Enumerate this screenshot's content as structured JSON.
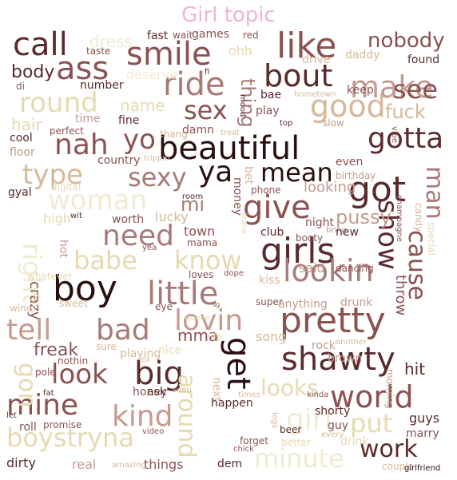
{
  "title": "Girl topic",
  "colors": {
    "background": "#ffffff",
    "title": "#f4b6c8",
    "palette": [
      "#2a0f10",
      "#5a2a2c",
      "#8a5250",
      "#a77a78",
      "#c49b8f",
      "#d6b998",
      "#e6dab0",
      "#f0ecd4"
    ]
  },
  "words": [
    {
      "text": "beautiful"
    },
    {
      "text": "girls"
    },
    {
      "text": "boy"
    },
    {
      "text": "pretty"
    },
    {
      "text": "little"
    },
    {
      "text": "smile"
    },
    {
      "text": "like"
    },
    {
      "text": "call"
    },
    {
      "text": "ride"
    },
    {
      "text": "bout"
    },
    {
      "text": "good"
    },
    {
      "text": "gotta"
    },
    {
      "text": "got"
    },
    {
      "text": "shawty"
    },
    {
      "text": "world"
    },
    {
      "text": "work"
    },
    {
      "text": "put"
    },
    {
      "text": "mine"
    },
    {
      "text": "kind"
    },
    {
      "text": "look"
    },
    {
      "text": "big"
    },
    {
      "text": "get"
    },
    {
      "text": "need"
    },
    {
      "text": "tell"
    },
    {
      "text": "bad"
    },
    {
      "text": "lovin"
    },
    {
      "text": "lookin"
    },
    {
      "text": "give"
    },
    {
      "text": "mean"
    },
    {
      "text": "sexy"
    },
    {
      "text": "ya"
    },
    {
      "text": "nah"
    },
    {
      "text": "yo"
    },
    {
      "text": "ass"
    },
    {
      "text": "make"
    },
    {
      "text": "see"
    },
    {
      "text": "round"
    },
    {
      "text": "sex"
    },
    {
      "text": "type"
    },
    {
      "text": "woman"
    },
    {
      "text": "babe"
    },
    {
      "text": "know"
    },
    {
      "text": "show"
    },
    {
      "text": "cause"
    },
    {
      "text": "man"
    },
    {
      "text": "boystryna"
    },
    {
      "text": "minute"
    },
    {
      "text": "around"
    },
    {
      "text": "girl"
    },
    {
      "text": "gon"
    },
    {
      "text": "right"
    },
    {
      "text": "nobody"
    },
    {
      "text": "body"
    },
    {
      "text": "hair"
    },
    {
      "text": "thing"
    },
    {
      "text": "pussy"
    },
    {
      "text": "looks"
    },
    {
      "text": "hit"
    },
    {
      "text": "freak"
    },
    {
      "text": "mma"
    },
    {
      "text": "throw"
    },
    {
      "text": "crazy"
    },
    {
      "text": "guys"
    },
    {
      "text": "marry"
    },
    {
      "text": "fuck"
    },
    {
      "text": "dress"
    },
    {
      "text": "fast"
    },
    {
      "text": "wait"
    },
    {
      "text": "games"
    },
    {
      "text": "red"
    },
    {
      "text": "taste"
    },
    {
      "text": "ohh"
    },
    {
      "text": "daddy"
    },
    {
      "text": "drive"
    },
    {
      "text": "found"
    },
    {
      "text": "di"
    },
    {
      "text": "number"
    },
    {
      "text": "deserve"
    },
    {
      "text": "fi"
    },
    {
      "text": "bae"
    },
    {
      "text": "hometown"
    },
    {
      "text": "keep"
    },
    {
      "text": "name"
    },
    {
      "text": "time"
    },
    {
      "text": "fine"
    },
    {
      "text": "play"
    },
    {
      "text": "top"
    },
    {
      "text": "slow"
    },
    {
      "text": "perfect"
    },
    {
      "text": "thang"
    },
    {
      "text": "damn"
    },
    {
      "text": "treat"
    },
    {
      "text": "mood"
    },
    {
      "text": "cool"
    },
    {
      "text": "floor"
    },
    {
      "text": "country"
    },
    {
      "text": "trippin"
    },
    {
      "text": "even"
    },
    {
      "text": "birthday"
    },
    {
      "text": "vibe"
    },
    {
      "text": "champagne"
    },
    {
      "text": "candy"
    },
    {
      "text": "special"
    },
    {
      "text": "digital"
    },
    {
      "text": "gyal"
    },
    {
      "text": "phone"
    },
    {
      "text": "looking"
    },
    {
      "text": "money"
    },
    {
      "text": "bet"
    },
    {
      "text": "lucky"
    },
    {
      "text": "room"
    },
    {
      "text": "jeans"
    },
    {
      "text": "night"
    },
    {
      "text": "bring"
    },
    {
      "text": "high"
    },
    {
      "text": "wit"
    },
    {
      "text": "worth"
    },
    {
      "text": "mi"
    },
    {
      "text": "town"
    },
    {
      "text": "club"
    },
    {
      "text": "booty"
    },
    {
      "text": "new"
    },
    {
      "text": "mama"
    },
    {
      "text": "hot"
    },
    {
      "text": "yea"
    },
    {
      "text": "said"
    },
    {
      "text": "dancing"
    },
    {
      "text": "til"
    },
    {
      "text": "loves"
    },
    {
      "text": "dope"
    },
    {
      "text": "kiss"
    },
    {
      "text": "whatever"
    },
    {
      "text": "worry"
    },
    {
      "text": "sweet"
    },
    {
      "text": "eye"
    },
    {
      "text": "sg"
    },
    {
      "text": "super"
    },
    {
      "text": "anything"
    },
    {
      "text": "drunk"
    },
    {
      "text": "wine"
    },
    {
      "text": "queen"
    },
    {
      "text": "rock"
    },
    {
      "text": "another"
    },
    {
      "text": "life"
    },
    {
      "text": "song"
    },
    {
      "text": "sure"
    },
    {
      "text": "playing"
    },
    {
      "text": "nice"
    },
    {
      "text": "nothin"
    },
    {
      "text": "ex"
    },
    {
      "text": "brown"
    },
    {
      "text": "pole"
    },
    {
      "text": "morning"
    },
    {
      "text": "honey"
    },
    {
      "text": "ask"
    },
    {
      "text": "seen"
    },
    {
      "text": "next"
    },
    {
      "text": "fat"
    },
    {
      "text": "times"
    },
    {
      "text": "kinda"
    },
    {
      "text": "happen"
    },
    {
      "text": "shorty"
    },
    {
      "text": "guy"
    },
    {
      "text": "let"
    },
    {
      "text": "roll"
    },
    {
      "text": "promise"
    },
    {
      "text": "legs"
    },
    {
      "text": "beer"
    },
    {
      "text": "every"
    },
    {
      "text": "video"
    },
    {
      "text": "better"
    },
    {
      "text": "forget"
    },
    {
      "text": "drink"
    },
    {
      "text": "chick"
    },
    {
      "text": "dirty"
    },
    {
      "text": "real"
    },
    {
      "text": "things"
    },
    {
      "text": "dem"
    },
    {
      "text": "amazing"
    },
    {
      "text": "couple"
    },
    {
      "text": "girlfriend"
    }
  ]
}
